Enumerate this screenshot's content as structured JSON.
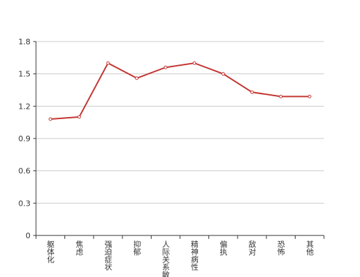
{
  "chart_data": {
    "type": "line",
    "categories": [
      "躯体化",
      "焦虑",
      "强迫症状",
      "抑郁",
      "人际关系敏感",
      "精神病性",
      "偏执",
      "敌对",
      "恐怖",
      "其他"
    ],
    "values": [
      1.08,
      1.1,
      1.6,
      1.46,
      1.56,
      1.6,
      1.5,
      1.33,
      1.29,
      1.29
    ],
    "color": "#c23531",
    "ylim": [
      0,
      1.8
    ],
    "yticks": [
      0,
      0.3,
      0.6,
      0.9,
      1.2,
      1.5,
      1.8
    ],
    "grid": true
  }
}
